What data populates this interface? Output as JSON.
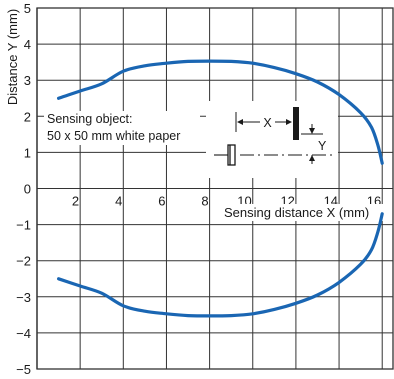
{
  "chart_data": {
    "type": "line",
    "xlabel": "Sensing distance X (mm)",
    "ylabel": "Distance Y (mm)",
    "xlim": [
      0,
      16.5
    ],
    "ylim": [
      -5,
      5
    ],
    "x_ticks": [
      2,
      4,
      6,
      8,
      10,
      12,
      14,
      16
    ],
    "y_ticks": [
      5,
      4,
      3,
      2,
      1,
      0,
      -1,
      -2,
      -3,
      -4,
      -5
    ],
    "y_tick_labels": [
      "5",
      "4",
      "3",
      "2",
      "1",
      "0",
      "−1",
      "−2",
      "−3",
      "−4",
      "−5"
    ],
    "grid": true,
    "line_color": "#1a66b3",
    "annotation": {
      "line1": "Sensing object:",
      "line2": "50 x 50 mm white paper"
    },
    "inset_labels": {
      "x": "X",
      "y": "Y"
    },
    "series": [
      {
        "x": [
          1.0,
          2.0,
          3.0,
          4.0,
          5.0,
          6.0,
          7.0,
          8.0,
          9.0,
          10.0,
          11.0,
          12.0,
          13.0,
          14.0,
          15.0,
          15.5,
          15.8,
          16.0
        ],
        "y": [
          2.5,
          2.7,
          2.9,
          3.25,
          3.4,
          3.47,
          3.52,
          3.53,
          3.52,
          3.47,
          3.35,
          3.18,
          2.95,
          2.6,
          2.1,
          1.7,
          1.2,
          0.7
        ]
      },
      {
        "x": [
          1.0,
          2.0,
          3.0,
          4.0,
          5.0,
          6.0,
          7.0,
          8.0,
          9.0,
          10.0,
          11.0,
          12.0,
          13.0,
          14.0,
          15.0,
          15.5,
          15.8,
          16.0
        ],
        "y": [
          -2.5,
          -2.7,
          -2.9,
          -3.25,
          -3.4,
          -3.47,
          -3.52,
          -3.53,
          -3.52,
          -3.47,
          -3.35,
          -3.18,
          -2.95,
          -2.6,
          -2.1,
          -1.7,
          -1.2,
          -0.7
        ]
      }
    ]
  }
}
